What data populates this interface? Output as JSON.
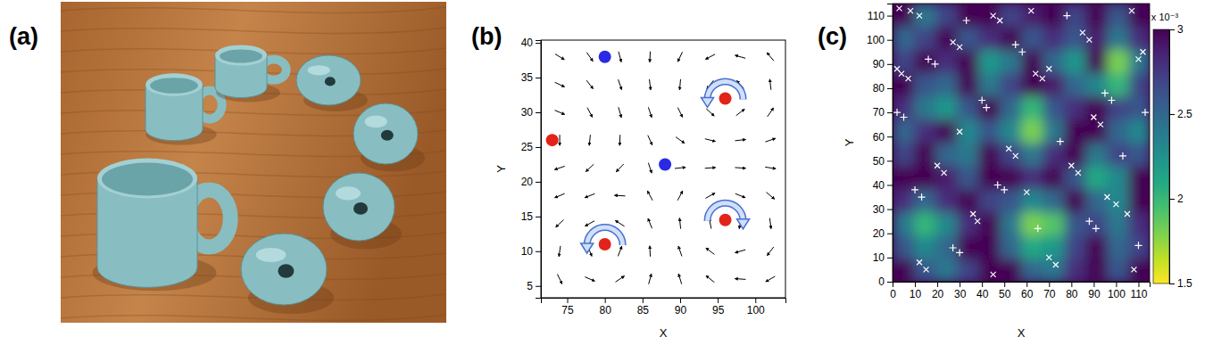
{
  "chart_data": [
    {
      "type": "image",
      "title": "(a)"
    },
    {
      "type": "quiver",
      "title": "(b)",
      "x_label": "X",
      "y_label": "Y",
      "xlim": [
        71.5,
        104
      ],
      "ylim": [
        3.3,
        40.4
      ],
      "xticks": [
        75,
        80,
        85,
        90,
        95,
        100
      ],
      "yticks": [
        5,
        10,
        15,
        20,
        25,
        30,
        35,
        40
      ],
      "vectors": {
        "x": [
          74,
          78,
          82,
          86,
          90,
          94,
          98,
          102,
          74,
          78,
          82,
          86,
          90,
          94,
          98,
          102,
          74,
          78,
          82,
          86,
          90,
          94,
          98,
          102,
          74,
          78,
          82,
          86,
          90,
          94,
          98,
          102,
          74,
          78,
          82,
          86,
          90,
          94,
          98,
          102,
          74,
          78,
          82,
          86,
          90,
          94,
          98,
          102,
          74,
          78,
          82,
          86,
          90,
          94,
          98,
          102,
          74,
          78,
          82,
          86,
          90,
          94,
          98,
          102,
          74,
          78,
          82,
          86,
          90,
          94,
          98,
          102
        ],
        "y": [
          6,
          6,
          6,
          6,
          6,
          6,
          6,
          6,
          10,
          10,
          10,
          10,
          10,
          10,
          10,
          10,
          14,
          14,
          14,
          14,
          14,
          14,
          14,
          14,
          18,
          18,
          18,
          18,
          18,
          18,
          18,
          18,
          22,
          22,
          22,
          22,
          22,
          22,
          22,
          22,
          26,
          26,
          26,
          26,
          26,
          26,
          26,
          26,
          30,
          30,
          30,
          30,
          30,
          30,
          30,
          30,
          34,
          34,
          34,
          34,
          34,
          34,
          34,
          34,
          38,
          38,
          38,
          38,
          38,
          38,
          38,
          38
        ],
        "angle": [
          -64,
          -23,
          34,
          75,
          107,
          141,
          176,
          210,
          262,
          -68,
          69,
          93,
          109,
          143,
          196,
          233,
          223,
          209,
          148,
          112,
          96,
          101,
          258,
          277,
          203,
          202,
          177,
          118,
          62,
          29,
          338,
          320,
          199,
          223,
          226,
          288,
          6,
          4,
          356,
          351,
          270,
          264,
          268,
          294,
          324,
          346,
          7,
          19,
          337,
          298,
          286,
          288,
          296,
          318,
          38,
          55,
          335,
          308,
          289,
          277,
          265,
          231,
          132,
          97,
          329,
          305,
          285,
          267,
          245,
          208,
          164,
          130
        ]
      },
      "series": [
        {
          "color": "#e2231a",
          "marker": "circle",
          "x": [
            96,
            73,
            80,
            96
          ],
          "y": [
            32,
            26,
            11,
            14.5
          ]
        },
        {
          "color": "#2a2ae6",
          "marker": "circle",
          "x": [
            80,
            88
          ],
          "y": [
            38,
            22.5
          ]
        }
      ]
    },
    {
      "type": "heatmap",
      "title": "(c)",
      "x_label": "X",
      "y_label": "Y",
      "xlim": [
        0,
        115
      ],
      "ylim": [
        0,
        115
      ],
      "xticks": [
        0,
        10,
        20,
        30,
        40,
        50,
        60,
        70,
        80,
        90,
        100,
        110
      ],
      "yticks": [
        0,
        10,
        20,
        30,
        40,
        50,
        60,
        70,
        80,
        90,
        100,
        110
      ],
      "cells": {
        "x": [
          4.8,
          14.4,
          24,
          33.6,
          43.2,
          52.8,
          62.4,
          72,
          81.6,
          91.2,
          100.8,
          110.4
        ],
        "y": [
          4.8,
          14.4,
          24,
          33.6,
          43.2,
          52.8,
          62.4,
          72,
          81.6,
          91.2,
          100.8,
          110.4
        ],
        "values": [
          [
            3,
            2.6,
            2.4,
            2.7,
            3,
            3,
            2.5,
            2.4,
            2.8,
            3,
            2.6,
            3
          ],
          [
            2.6,
            2.3,
            2.5,
            3,
            3,
            2.5,
            2.1,
            2.2,
            2.7,
            3,
            2.5,
            2.7
          ],
          [
            2.4,
            2.0,
            2.3,
            2.8,
            3,
            2.4,
            1.8,
            1.9,
            2.6,
            2.7,
            2.4,
            2.8
          ],
          [
            2.8,
            2.5,
            2.8,
            3,
            2.7,
            2.6,
            2.3,
            2.5,
            3,
            2.5,
            2.3,
            3
          ],
          [
            3,
            3,
            2.9,
            2.6,
            3,
            3,
            2.8,
            3,
            2.6,
            2.1,
            2.3,
            3
          ],
          [
            2.7,
            3,
            2.5,
            2.4,
            3,
            2.7,
            2.4,
            2.8,
            3,
            2.4,
            2.7,
            2.6
          ],
          [
            2.5,
            2.8,
            3,
            2.3,
            2.6,
            2.3,
            1.8,
            2.4,
            3,
            3,
            2.5,
            2.3
          ],
          [
            2.8,
            2.4,
            2.2,
            2.6,
            3,
            2.5,
            2.0,
            2.6,
            2.8,
            3,
            2.7,
            2.6
          ],
          [
            3,
            2.6,
            2.5,
            3,
            2.4,
            2.7,
            3,
            2.9,
            2.5,
            2.3,
            2.0,
            2.7
          ],
          [
            2.7,
            3,
            2.8,
            3,
            2.2,
            2.4,
            3,
            2.5,
            2.2,
            3,
            1.8,
            2.4
          ],
          [
            2.5,
            2.7,
            3,
            2.6,
            2.8,
            3,
            2.6,
            2.8,
            2.6,
            2.9,
            2.4,
            2.8
          ],
          [
            3,
            2.4,
            2.7,
            3,
            3,
            2.7,
            2.9,
            3,
            2.7,
            3,
            2.6,
            3
          ]
        ]
      },
      "colorbar": {
        "range": [
          1.5,
          3
        ],
        "ticks": [
          1.5,
          2,
          2.5,
          3
        ],
        "label": "x 10⁻³"
      },
      "series": [
        {
          "color": "#ffffff",
          "marker": "x",
          "x": [
            3,
            8,
            12,
            4,
            7,
            2,
            27,
            30,
            45,
            48,
            62,
            64,
            67,
            70,
            85,
            88,
            107,
            110,
            112,
            20,
            23,
            36,
            38,
            52,
            55,
            80,
            83,
            96,
            100,
            105,
            12,
            15,
            45,
            70,
            73,
            108,
            90,
            93,
            60,
            30
          ],
          "y": [
            113,
            112,
            110,
            86,
            84,
            88,
            99,
            97,
            110,
            108,
            112,
            86,
            84,
            88,
            103,
            100,
            112,
            92,
            95,
            48,
            45,
            28,
            25,
            55,
            52,
            48,
            45,
            35,
            32,
            28,
            8,
            5,
            3,
            10,
            7,
            5,
            68,
            65,
            37,
            62
          ]
        },
        {
          "color": "#ffffff",
          "marker": "plus",
          "x": [
            2,
            5,
            16,
            19,
            33,
            55,
            58,
            78,
            95,
            98,
            113,
            10,
            13,
            27,
            30,
            47,
            50,
            65,
            88,
            91,
            103,
            110,
            40,
            42,
            75
          ],
          "y": [
            70,
            68,
            92,
            90,
            108,
            98,
            95,
            110,
            78,
            75,
            70,
            38,
            35,
            14,
            12,
            40,
            38,
            22,
            25,
            22,
            52,
            15,
            75,
            72,
            58
          ]
        }
      ]
    }
  ]
}
